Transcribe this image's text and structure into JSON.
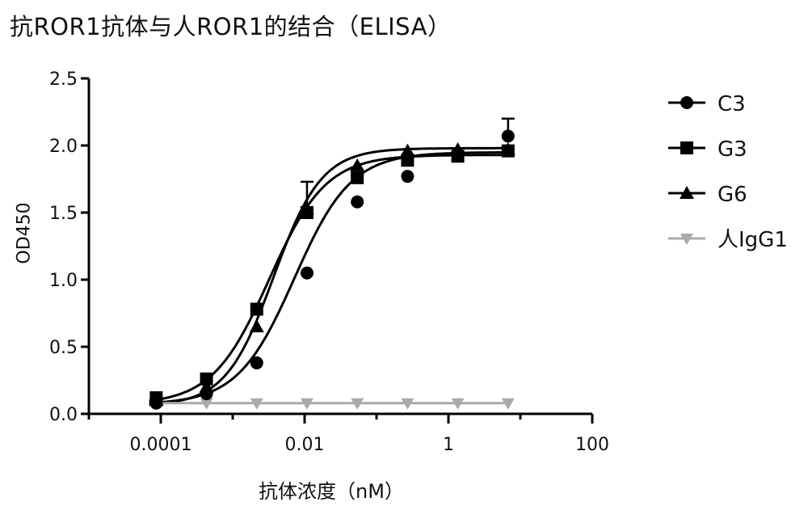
{
  "chart_data": {
    "type": "scatter",
    "title": "抗ROR1抗体与人ROR1的结合（ELISA）",
    "xlabel": "抗体浓度（nM）",
    "ylabel": "OD450",
    "xscale": "log",
    "xlim": [
      1e-05,
      100
    ],
    "ylim": [
      0,
      2.5
    ],
    "x_ticks": [
      {
        "value": 0.0001,
        "label": "0.0001"
      },
      {
        "value": 0.01,
        "label": "0.01"
      },
      {
        "value": 1,
        "label": "1"
      },
      {
        "value": 100,
        "label": "100"
      }
    ],
    "y_ticks": [
      {
        "value": 0.0,
        "label": "0.0"
      },
      {
        "value": 0.5,
        "label": "0.5"
      },
      {
        "value": 1.0,
        "label": "1.0"
      },
      {
        "value": 1.5,
        "label": "1.5"
      },
      {
        "value": 2.0,
        "label": "2.0"
      },
      {
        "value": 2.5,
        "label": "2.5"
      }
    ],
    "x": [
      8.64e-05,
      0.000432,
      0.00216,
      0.0108,
      0.054,
      0.27,
      1.35,
      6.75
    ],
    "legend_position": "right",
    "grid": false,
    "series": [
      {
        "name": "C3",
        "marker": "circle",
        "color": "#000000",
        "values": [
          0.08,
          0.15,
          0.38,
          1.05,
          1.58,
          1.77,
          1.93,
          2.07
        ],
        "error": [
          0,
          0,
          0,
          0,
          0,
          0,
          0,
          0.13
        ],
        "fit": {
          "bottom": 0.07,
          "top": 1.95,
          "ec50": 0.0072,
          "hill": 1.1
        }
      },
      {
        "name": "G3",
        "marker": "square",
        "color": "#000000",
        "values": [
          0.12,
          0.26,
          0.78,
          1.5,
          1.76,
          1.89,
          1.92,
          1.96
        ],
        "error": [
          0,
          0,
          0,
          0.04,
          0.02,
          0,
          0,
          0
        ],
        "fit": {
          "bottom": 0.07,
          "top": 1.93,
          "ec50": 0.0032,
          "hill": 1.1
        }
      },
      {
        "name": "G6",
        "marker": "triangle",
        "color": "#000000",
        "values": [
          0.1,
          0.2,
          0.65,
          1.53,
          1.85,
          1.96,
          1.97,
          1.97
        ],
        "error": [
          0,
          0,
          0,
          0.2,
          0,
          0,
          0,
          0
        ],
        "fit": {
          "bottom": 0.06,
          "top": 1.98,
          "ec50": 0.0037,
          "hill": 1.3
        }
      },
      {
        "name": "人IgG1",
        "marker": "triangle-down",
        "color": "#aaaaaa",
        "values": [
          0.08,
          0.08,
          0.08,
          0.08,
          0.08,
          0.08,
          0.08,
          0.08
        ],
        "error": [
          0,
          0,
          0,
          0,
          0,
          0,
          0,
          0
        ]
      }
    ]
  }
}
